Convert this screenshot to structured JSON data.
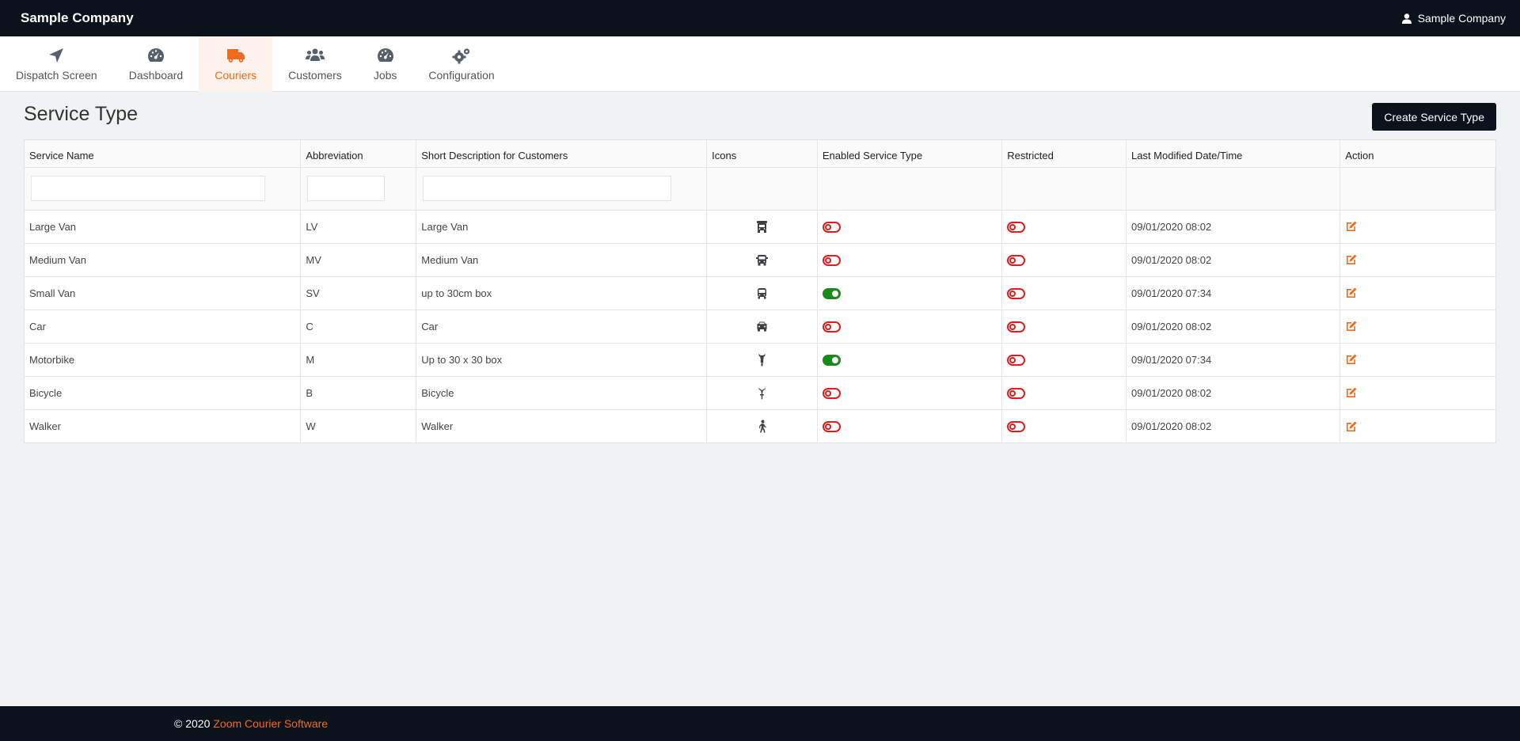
{
  "header": {
    "brand": "Sample Company",
    "user_name": "Sample Company"
  },
  "nav": [
    {
      "label": "Dispatch Screen",
      "icon": "location-arrow-icon",
      "active": false
    },
    {
      "label": "Dashboard",
      "icon": "gauge-icon",
      "active": false
    },
    {
      "label": "Couriers",
      "icon": "truck-icon",
      "active": true
    },
    {
      "label": "Customers",
      "icon": "users-icon",
      "active": false
    },
    {
      "label": "Jobs",
      "icon": "gauge-icon",
      "active": false
    },
    {
      "label": "Configuration",
      "icon": "gears-icon",
      "active": false
    }
  ],
  "page": {
    "title": "Service Type",
    "create_button": "Create Service Type"
  },
  "table": {
    "columns": [
      "Service Name",
      "Abbreviation",
      "Short Description for Customers",
      "Icons",
      "Enabled Service Type",
      "Restricted",
      "Last Modified Date/Time",
      "Action"
    ],
    "rows": [
      {
        "name": "Large Van",
        "abbr": "LV",
        "desc": "Large Van",
        "icon": "truck-front-icon",
        "enabled": false,
        "restricted": false,
        "modified": "09/01/2020 08:02"
      },
      {
        "name": "Medium Van",
        "abbr": "MV",
        "desc": "Medium Van",
        "icon": "van-front-icon",
        "enabled": false,
        "restricted": false,
        "modified": "09/01/2020 08:02"
      },
      {
        "name": "Small Van",
        "abbr": "SV",
        "desc": "up to 30cm box",
        "icon": "bus-icon",
        "enabled": true,
        "restricted": false,
        "modified": "09/01/2020 07:34"
      },
      {
        "name": "Car",
        "abbr": "C",
        "desc": "Car",
        "icon": "car-icon",
        "enabled": false,
        "restricted": false,
        "modified": "09/01/2020 08:02"
      },
      {
        "name": "Motorbike",
        "abbr": "M",
        "desc": "Up to 30 x 30 box",
        "icon": "motorcycle-icon",
        "enabled": true,
        "restricted": false,
        "modified": "09/01/2020 07:34"
      },
      {
        "name": "Bicycle",
        "abbr": "B",
        "desc": "Bicycle",
        "icon": "bicycle-icon",
        "enabled": false,
        "restricted": false,
        "modified": "09/01/2020 08:02"
      },
      {
        "name": "Walker",
        "abbr": "W",
        "desc": "Walker",
        "icon": "walking-icon",
        "enabled": false,
        "restricted": false,
        "modified": "09/01/2020 08:02"
      }
    ]
  },
  "footer": {
    "copyright": "© 2020",
    "company_link": "Zoom Courier Software"
  },
  "colors": {
    "accent": "#f26a1b",
    "dark": "#0b121c",
    "toggle_on": "#1a8a1a",
    "toggle_off": "#e21b1b"
  }
}
